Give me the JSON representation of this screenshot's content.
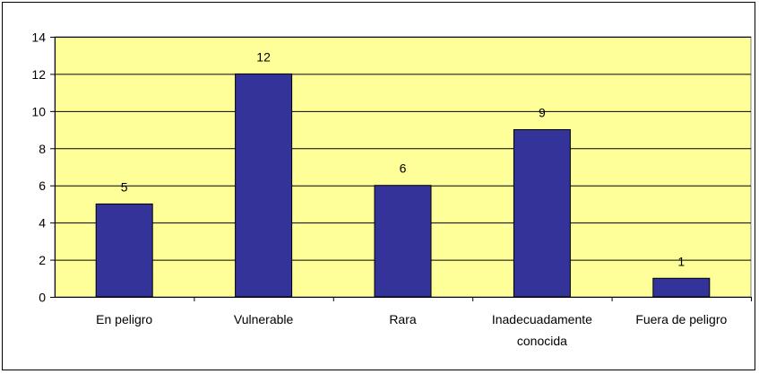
{
  "chart_data": {
    "type": "bar",
    "title": "",
    "xlabel": "",
    "ylabel": "",
    "categories": [
      [
        "En peligro"
      ],
      [
        "Vulnerable"
      ],
      [
        "Rara"
      ],
      [
        "Inadecuadamente",
        "conocida"
      ],
      [
        "Fuera de peligro"
      ]
    ],
    "values": [
      5,
      12,
      6,
      9,
      1
    ],
    "data_labels": [
      "5",
      "12",
      "6",
      "9",
      "1"
    ],
    "ylim": [
      0,
      14
    ],
    "yticks": [
      0,
      2,
      4,
      6,
      8,
      10,
      12,
      14
    ],
    "grid": true,
    "legend": "none",
    "colors": {
      "plot_background": "#FFFF99",
      "bar": "#333399",
      "bar_edge": "#000000",
      "gridline": "#000000",
      "frame": "#000000"
    }
  }
}
